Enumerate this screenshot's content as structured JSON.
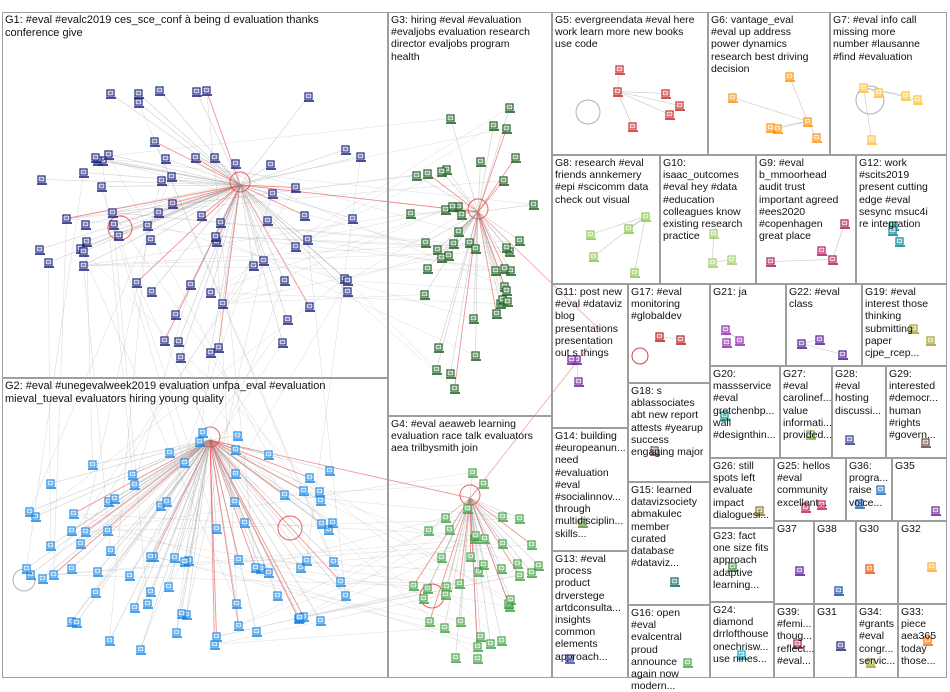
{
  "panels": [
    {
      "id": "G1",
      "label": "G1: #eval #evalc2019 ces_sce_conf à being d evaluation thanks\nconference give",
      "color": "#1a237e"
    },
    {
      "id": "G2",
      "label": "G2: #eval #unegevalweek2019 evaluation unfpa_eval #evaluation\nmieval_tueval evaluators hiring young quality",
      "color": "#1e88e5"
    },
    {
      "id": "G3",
      "label": "G3: hiring #eval #evaluation\n#evaljobs evaluation research\ndirector evaljobs program\nhealth",
      "color": "#1b5e20"
    },
    {
      "id": "G4",
      "label": "G4: #eval aeaweb learning\nevaluation race talk evaluators\naea trilbysmith join",
      "color": "#43a047"
    },
    {
      "id": "G5",
      "label": "G5: evergreendata #eval here\nwork learn more new books\nuse code",
      "color": "#c62828"
    },
    {
      "id": "G6",
      "label": "G6: vantage_eval\n#eval up address\npower dynamics\nresearch best driving\ndecision",
      "color": "#ff8f00"
    },
    {
      "id": "G7",
      "label": "G7: #eval info call\nmissing more\nnumber #lausanne\n#find #evaluation",
      "color": "#fbc02d"
    },
    {
      "id": "G8",
      "label": "G8: research #eval\nfriends annkemery\n#epi #scicomm data\ncheck out visual",
      "color": "#8bc34a"
    },
    {
      "id": "G10",
      "label": "G10:\nisaac_outcomes\n#eval hey #data\n#education\ncolleagues know\nexisting research\npractice",
      "color": "#9ccc65"
    },
    {
      "id": "G9",
      "label": "G9: #eval\nb_mmoorhead\naudit trust\nimportant agreed\n#ees2020\n#copenhagen\ngreat place",
      "color": "#ad1457"
    },
    {
      "id": "G12",
      "label": "G12: work\n#scits2019\npresent cutting\nedge #eval\nsesync msuc4i\nre integration",
      "color": "#00838f"
    },
    {
      "id": "G11",
      "label": "G11: post new\n#eval #dataviz\nblog\npresentations\npresentation\nout s things",
      "color": "#6a1b9a"
    },
    {
      "id": "G17",
      "label": "G17: #eval\nmonitoring\n#globaldev",
      "color": "#b71c1c"
    },
    {
      "id": "G21",
      "label": "G21: ja",
      "color": "#8e24aa"
    },
    {
      "id": "G22",
      "label": "G22: #eval\nclass",
      "color": "#4a148c"
    },
    {
      "id": "G19",
      "label": "G19: #eval\ninterest those\nthinking\nsubmitting\npaper\ncjpe_rcep...",
      "color": "#9e9d24"
    },
    {
      "id": "G18",
      "label": "G18: s\nablassociates\nabt new report\nattests #yearup\nsuccess\nengaging major",
      "color": "#6d4c41"
    },
    {
      "id": "G20",
      "label": "G20:\nmassservice\n#eval\ngretchenbp...\nwall\n#designthin...",
      "color": "#00897b"
    },
    {
      "id": "G27",
      "label": "G27:\n#eval\ncarolinef...\nvalue\ninformati...\nprovided...",
      "color": "#7cb342"
    },
    {
      "id": "G28",
      "label": "G28:\n#eval\nhosting\ndiscussi...",
      "color": "#283593"
    },
    {
      "id": "G29",
      "label": "G29:\ninterested\n#democr...\nhuman\n#rights\n#govern...",
      "color": "#5d4037"
    },
    {
      "id": "G14",
      "label": "G14: building\n#europeanun...\nneed\n#evaluation\n#eval\n#socialinnov...\nthrough\nmultidisciplin...\nskills...",
      "color": "#558b2f"
    },
    {
      "id": "G15",
      "label": "G15: learned\ndatavizsociety\nabmakulec\nmember\ncurated\ndatabase\n#dataviz...",
      "color": "#00695c"
    },
    {
      "id": "G26",
      "label": "G26: still\nspots left\nevaluate\nimpact\ndialoguesi...",
      "color": "#827717"
    },
    {
      "id": "G25",
      "label": "G25: hellos\n#eval\ncommunity\nexcellent...",
      "color": "#c2185b"
    },
    {
      "id": "G36",
      "label": "G36:\nprogra...\nraise\nvoice...",
      "color": "#1565c0"
    },
    {
      "id": "G35",
      "label": "G35",
      "color": "#6a1b9a"
    },
    {
      "id": "G23",
      "label": "G23: fact\none size fits\napproach\nadaptive\nlearning...",
      "color": "#2e7d32"
    },
    {
      "id": "G37",
      "label": "G37",
      "color": "#4a148c"
    },
    {
      "id": "G38",
      "label": "G38",
      "color": "#0d47a1"
    },
    {
      "id": "G30",
      "label": "G30",
      "color": "#e65100"
    },
    {
      "id": "G32",
      "label": "G32",
      "color": "#f9a825"
    },
    {
      "id": "G13",
      "label": "G13: #eval\nprocess\nproduct\ndrverstege\nartdconsulta...\ninsights\ncommon\nelements\napproach...",
      "color": "#3949ab"
    },
    {
      "id": "G16",
      "label": "G16: open\n#eval\nevalcentral\nproud\nannounce\nagain now\nmodern...",
      "color": "#43a047"
    },
    {
      "id": "G24",
      "label": "G24:\ndiamond\ndrrlofthouse\nonechrisw...\nuse nines...",
      "color": "#00acc1"
    },
    {
      "id": "G39",
      "label": "G39: #femi...\nthoug...\nreflect...\n#eval...",
      "color": "#ad1457"
    },
    {
      "id": "G31",
      "label": "G31",
      "color": "#1a237e"
    },
    {
      "id": "G34",
      "label": "G34:\n#grants\n#eval\ncongr...\nservic...",
      "color": "#9e9d24"
    },
    {
      "id": "G33",
      "label": "G33: piece\naea365\ntoday\nthose...",
      "color": "#ef6c00"
    }
  ]
}
